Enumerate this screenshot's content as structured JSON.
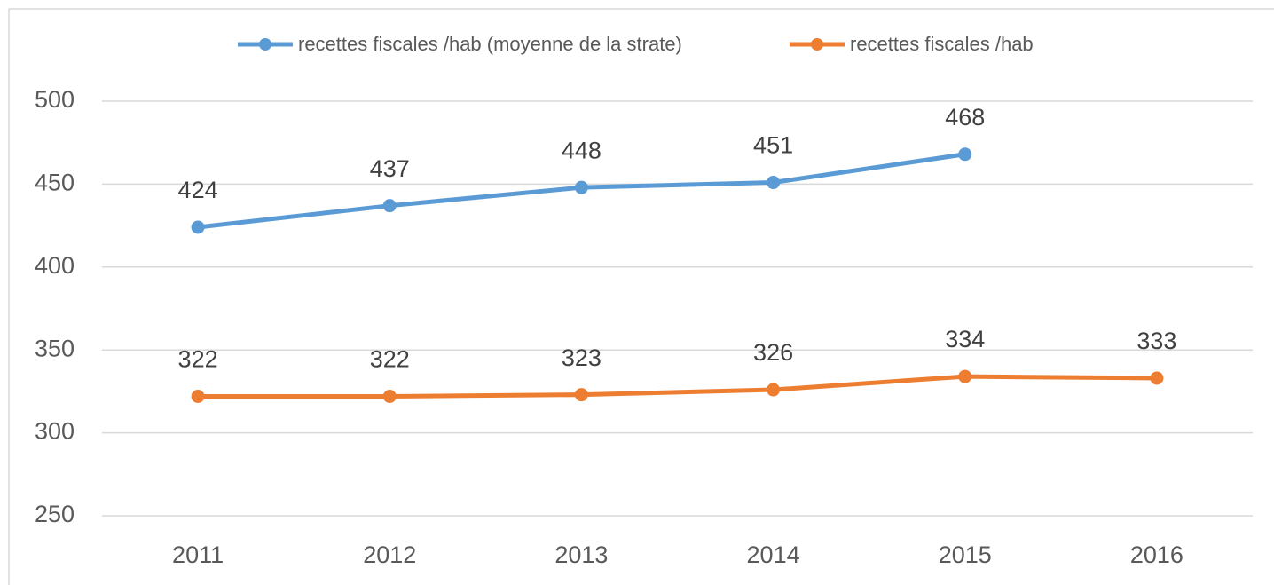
{
  "chart_data": {
    "type": "line",
    "categories": [
      "2011",
      "2012",
      "2013",
      "2014",
      "2015",
      "2016"
    ],
    "series": [
      {
        "name": "recettes fiscales /hab (moyenne de la strate)",
        "color": "#5b9bd5",
        "values": [
          424,
          437,
          448,
          451,
          468,
          null
        ]
      },
      {
        "name": "recettes fiscales /hab",
        "color": "#ed7d31",
        "values": [
          322,
          322,
          323,
          326,
          334,
          333
        ]
      }
    ],
    "ylim": [
      250,
      500
    ],
    "yticks": [
      250,
      300,
      350,
      400,
      450,
      500
    ],
    "grid": true,
    "legend": "top"
  }
}
